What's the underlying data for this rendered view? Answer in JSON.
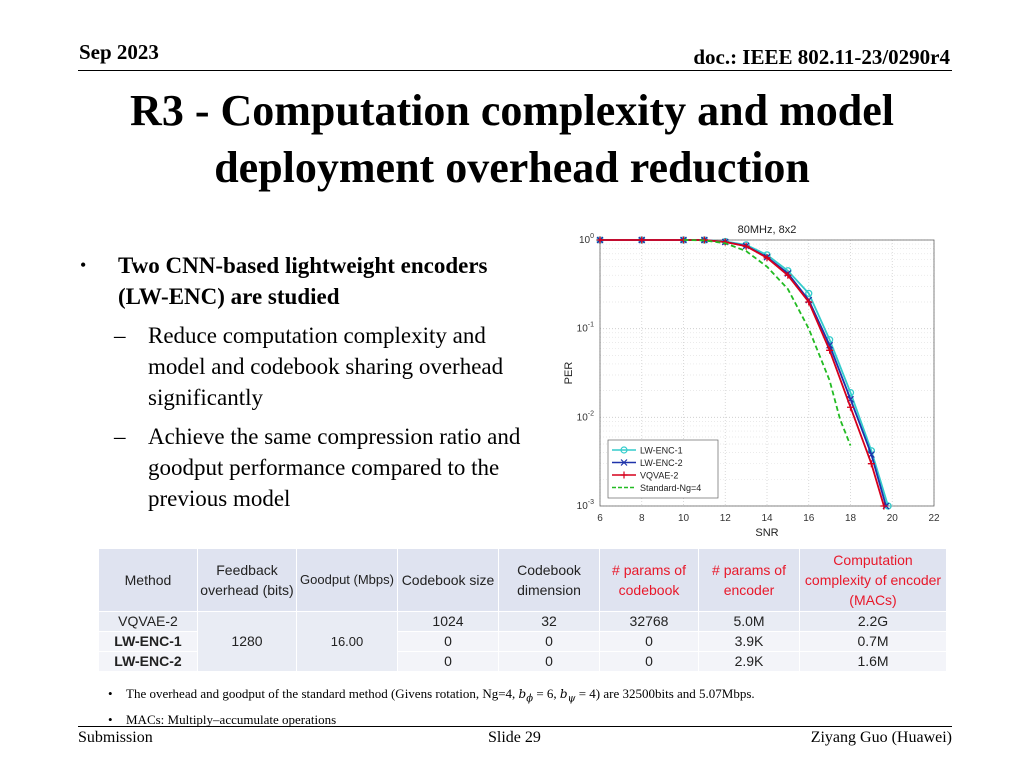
{
  "header": {
    "date": "Sep 2023",
    "doc": "doc.: IEEE 802.11-23/0290r4"
  },
  "title": {
    "line1": "R3 - Computation complexity and model",
    "line2": "deployment overhead reduction"
  },
  "bullets": {
    "main": "Two CNN-based lightweight encoders (LW-ENC) are studied",
    "marker": "•",
    "dash": "–",
    "sub": [
      "Reduce computation complexity and model and codebook sharing overhead significantly",
      "Achieve the same compression ratio and goodput performance compared to the previous model"
    ]
  },
  "chart_data": {
    "type": "line",
    "title": "80MHz, 8x2",
    "xlabel": "SNR",
    "ylabel": "PER",
    "xlim": [
      6,
      22
    ],
    "ylim": [
      0.001,
      1
    ],
    "yscale": "log",
    "grid": true,
    "legend_position": "bottom-left",
    "xticks": [
      "6",
      "8",
      "10",
      "12",
      "14",
      "16",
      "18",
      "20",
      "22"
    ],
    "yticks": [
      "10^-3",
      "10^-2",
      "10^-1",
      "10^0"
    ],
    "series": [
      {
        "name": "LW-ENC-1",
        "color": "#33cccc",
        "marker": "o",
        "dash": "solid",
        "points": [
          [
            6,
            1
          ],
          [
            8,
            1
          ],
          [
            10,
            1
          ],
          [
            11,
            1
          ],
          [
            12,
            0.96
          ],
          [
            13,
            0.88
          ],
          [
            14,
            0.68
          ],
          [
            15,
            0.45
          ],
          [
            16,
            0.25
          ],
          [
            17,
            0.075
          ],
          [
            18,
            0.019
          ],
          [
            19,
            0.0042
          ],
          [
            19.8,
            0.001
          ]
        ]
      },
      {
        "name": "LW-ENC-2",
        "color": "#1f33aa",
        "marker": "x",
        "dash": "solid",
        "points": [
          [
            6,
            1
          ],
          [
            8,
            1
          ],
          [
            10,
            1
          ],
          [
            11,
            1
          ],
          [
            12,
            0.95
          ],
          [
            13,
            0.86
          ],
          [
            14,
            0.64
          ],
          [
            15,
            0.42
          ],
          [
            16,
            0.21
          ],
          [
            17,
            0.065
          ],
          [
            18,
            0.016
          ],
          [
            19,
            0.0038
          ],
          [
            19.7,
            0.001
          ]
        ]
      },
      {
        "name": "VQVAE-2",
        "color": "#d6001c",
        "marker": "+",
        "dash": "solid",
        "points": [
          [
            6,
            1
          ],
          [
            8,
            1
          ],
          [
            10,
            1
          ],
          [
            11,
            1
          ],
          [
            12,
            0.95
          ],
          [
            13,
            0.85
          ],
          [
            14,
            0.63
          ],
          [
            15,
            0.4
          ],
          [
            16,
            0.2
          ],
          [
            17,
            0.057
          ],
          [
            18,
            0.013
          ],
          [
            19,
            0.003
          ],
          [
            19.6,
            0.001
          ]
        ]
      },
      {
        "name": "Standard-Ng=4",
        "color": "#22bb22",
        "marker": "none",
        "dash": "dashed",
        "points": [
          [
            10,
            1
          ],
          [
            11,
            0.99
          ],
          [
            12,
            0.92
          ],
          [
            13,
            0.75
          ],
          [
            14,
            0.5
          ],
          [
            15,
            0.28
          ],
          [
            16,
            0.1
          ],
          [
            17,
            0.026
          ],
          [
            17.5,
            0.0095
          ],
          [
            18,
            0.0048
          ]
        ]
      }
    ]
  },
  "table": {
    "headers": [
      "Method",
      "Feedback overhead (bits)",
      "Goodput (Mbps)",
      "Codebook size",
      "Codebook dimension",
      "# params of codebook",
      "# params of encoder",
      "Computation complexity of encoder (MACs)"
    ],
    "shared_feedback": "1280",
    "shared_goodput": "16.00",
    "rows": [
      {
        "method": "VQVAE-2",
        "codebook_size": "1024",
        "codebook_dim": "32",
        "params_codebook": "32768",
        "params_encoder": "5.0M",
        "macs": "2.2G"
      },
      {
        "method": "LW-ENC-1",
        "codebook_size": "0",
        "codebook_dim": "0",
        "params_codebook": "0",
        "params_encoder": "3.9K",
        "macs": "0.7M"
      },
      {
        "method": "LW-ENC-2",
        "codebook_size": "0",
        "codebook_dim": "0",
        "params_codebook": "0",
        "params_encoder": "2.9K",
        "macs": "1.6M"
      }
    ]
  },
  "notes": {
    "note1_prefix": "The overhead and goodput of the standard method (Givens rotation, Ng=4, ",
    "note1_math": "b",
    "note1_sub1": "ϕ",
    "note1_mid": " = 6, ",
    "note1_sub2": "ψ",
    "note1_end": " = 4)",
    "note1_suffix": "  are 32500bits and 5.07Mbps.",
    "note2": "MACs: Multiply–accumulate operations"
  },
  "footer": {
    "left": "Submission",
    "center": "Slide 29",
    "right": "Ziyang Guo (Huawei)"
  }
}
